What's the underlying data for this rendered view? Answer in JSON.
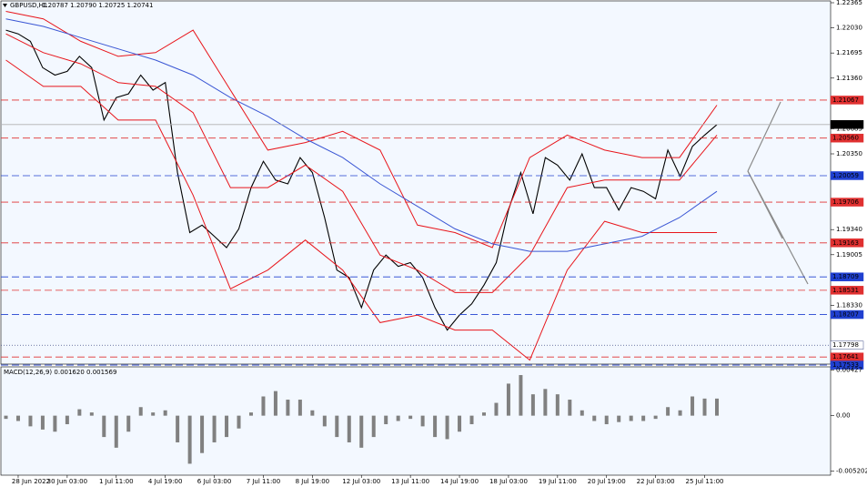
{
  "chart_data": [
    {
      "type": "line",
      "title": "GBPUSD,H1",
      "quote": "1.20787 1.20790 1.20725 1.20741",
      "ylim": [
        1.17546,
        1.22365
      ],
      "yticks": [
        1.22365,
        {
          "value": 1.2203,
          "label": "1.22030"
        },
        1.21695,
        {
          "value": 1.2136,
          "label": "1.21360"
        },
        1.20685,
        {
          "value": 1.2035,
          "label": "1.20350"
        },
        {
          "value": 1.1934,
          "label": "1.19340"
        },
        1.19005,
        {
          "value": 1.1833,
          "label": "1.18330"
        }
      ],
      "time_labels": [
        "28 Jun 2022",
        "30 Jun 03:00",
        "1 Jul 11:00",
        "4 Jul 19:00",
        "6 Jul 03:00",
        "7 Jul 11:00",
        "8 Jul 19:00",
        "12 Jul 03:00",
        "13 Jul 11:00",
        "14 Jul 19:00",
        "18 Jul 03:00",
        "19 Jul 11:00",
        "20 Jul 19:00",
        "22 Jul 03:00",
        "25 Jul 11:00"
      ],
      "series": [
        {
          "color": "#000000",
          "values": [
            1.22,
            1.2195,
            1.2185,
            1.215,
            1.214,
            1.2145,
            1.2165,
            1.215,
            1.208,
            1.211,
            1.2115,
            1.214,
            1.212,
            1.213,
            1.201,
            1.193,
            1.194,
            1.1925,
            1.191,
            1.1935,
            1.199,
            1.2025,
            1.2,
            1.1995,
            1.203,
            1.201,
            1.195,
            1.188,
            1.187,
            1.183,
            1.188,
            1.19,
            1.1885,
            1.189,
            1.187,
            1.183,
            1.18,
            1.182,
            1.1835,
            1.186,
            1.189,
            1.196,
            1.201,
            1.1955,
            1.203,
            1.202,
            1.2,
            1.2035,
            1.199,
            1.199,
            1.196,
            1.199,
            1.1985,
            1.1975,
            1.204,
            1.2005,
            1.2045,
            1.206,
            1.2074
          ]
        },
        {
          "color": "#e8151b",
          "values": [
            1.2225,
            1.2215,
            1.2185,
            1.2165,
            1.217,
            1.22,
            1.212,
            1.204,
            1.205,
            1.2065,
            1.204,
            1.194,
            1.193,
            1.191,
            1.203,
            1.206,
            1.204,
            1.203,
            1.203,
            1.21
          ]
        },
        {
          "color": "#e8151b",
          "values": [
            1.2195,
            1.217,
            1.2155,
            1.213,
            1.2125,
            1.209,
            1.199,
            1.199,
            1.202,
            1.1985,
            1.19,
            1.188,
            1.185,
            1.185,
            1.19,
            1.199,
            1.2,
            1.2,
            1.2,
            1.206
          ]
        },
        {
          "color": "#e8151b",
          "values": [
            1.216,
            1.2125,
            1.2125,
            1.208,
            1.208,
            1.198,
            1.1855,
            1.188,
            1.192,
            1.188,
            1.181,
            1.182,
            1.18,
            1.18,
            1.176,
            1.188,
            1.1945,
            1.193,
            1.193,
            1.193
          ]
        },
        {
          "color": "#3a56d4",
          "values": [
            1.2215,
            1.2205,
            1.219,
            1.2175,
            1.216,
            1.214,
            1.211,
            1.2085,
            1.2055,
            1.203,
            1.1995,
            1.1965,
            1.1935,
            1.1915,
            1.1905,
            1.1905,
            1.1915,
            1.1925,
            1.195,
            1.1985
          ]
        }
      ],
      "levels": [
        {
          "value": 1.21067,
          "color": "#e03030",
          "style": "dashed"
        },
        {
          "value": 1.2056,
          "label": "1.20560",
          "color": "#e03030",
          "style": "dashed"
        },
        {
          "value": 1.19706,
          "color": "#e03030",
          "style": "dashed"
        },
        {
          "value": 1.19163,
          "color": "#e03030",
          "style": "dashed"
        },
        {
          "value": 1.18531,
          "color": "#e03030",
          "style": "dashed"
        },
        {
          "value": 1.17641,
          "color": "#e03030",
          "style": "dashed"
        },
        {
          "value": 1.20059,
          "color": "#2040d0",
          "style": "dashed"
        },
        {
          "value": 1.18709,
          "color": "#2040d0",
          "style": "dashed"
        },
        {
          "value": 1.18207,
          "color": "#2040d0",
          "style": "dashed"
        },
        {
          "value": 1.17533,
          "color": "#2040d0",
          "style": "dashed"
        },
        {
          "value": 1.17798,
          "color": "#44508a",
          "style": "dotted"
        },
        {
          "value": 1.20741,
          "color": "#000000",
          "style": "solid"
        }
      ]
    },
    {
      "type": "bar",
      "title": "MACD(12,26,9) 0.001620 0.001569",
      "color": "#808080",
      "ylim": [
        -0.0054,
        0.0044
      ],
      "yticks": [
        0.00427,
        {
          "value": 0,
          "label": "0.00"
        },
        -0.005202
      ],
      "values": [
        -0.0003,
        -0.0005,
        -0.001,
        -0.0013,
        -0.0015,
        -0.0008,
        0.0006,
        0.0003,
        -0.002,
        -0.003,
        -0.0015,
        0.0008,
        0.0003,
        0.0005,
        -0.0025,
        -0.0045,
        -0.0035,
        -0.0025,
        -0.002,
        -0.0012,
        0.0003,
        0.0018,
        0.0023,
        0.0015,
        0.0015,
        0.0005,
        -0.001,
        -0.002,
        -0.0025,
        -0.003,
        -0.002,
        -0.0008,
        -0.0005,
        -0.0003,
        -0.001,
        -0.002,
        -0.0022,
        -0.0015,
        -0.0008,
        0.0003,
        0.0012,
        0.003,
        0.0038,
        0.002,
        0.0025,
        0.002,
        0.0015,
        0.0005,
        -0.0005,
        -0.0008,
        -0.0006,
        -0.0005,
        -0.0005,
        -0.0003,
        0.0008,
        0.0005,
        0.0018,
        0.0016,
        0.0016
      ]
    }
  ]
}
